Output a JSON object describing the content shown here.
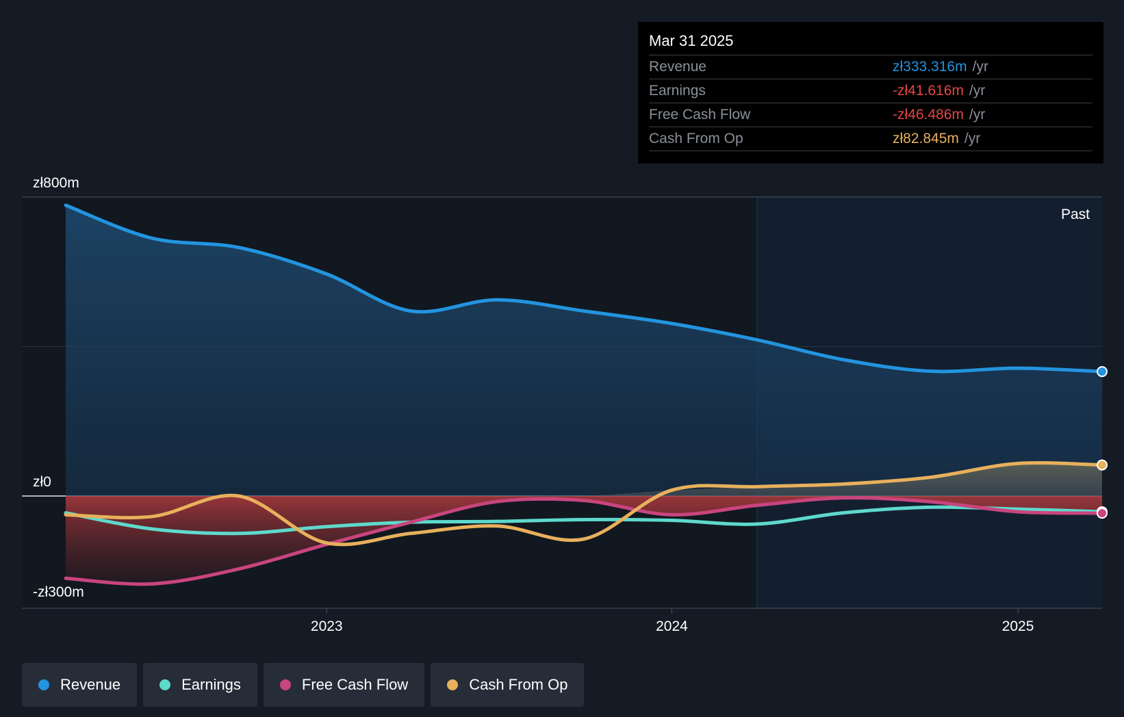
{
  "tooltip": {
    "date": "Mar 31 2025",
    "rows": [
      {
        "label": "Revenue",
        "value": "zł333.316m",
        "unit": "/yr",
        "color": "#2394df"
      },
      {
        "label": "Earnings",
        "value": "-zł41.616m",
        "unit": "/yr",
        "color": "#e64545"
      },
      {
        "label": "Free Cash Flow",
        "value": "-zł46.486m",
        "unit": "/yr",
        "color": "#e64545"
      },
      {
        "label": "Cash From Op",
        "value": "zł82.845m",
        "unit": "/yr",
        "color": "#e8b05c"
      }
    ]
  },
  "legend": [
    {
      "label": "Revenue",
      "color": "#2394df"
    },
    {
      "label": "Earnings",
      "color": "#5ed9cc"
    },
    {
      "label": "Free Cash Flow",
      "color": "#c8457e"
    },
    {
      "label": "Cash From Op",
      "color": "#e8b05c"
    }
  ],
  "chart_data": {
    "type": "line",
    "y_unit": "zł millions",
    "ylim": [
      -300,
      800
    ],
    "y_ticks": [
      {
        "value": 800,
        "label": "zł800m"
      },
      {
        "value": 0,
        "label": "zł0"
      },
      {
        "value": -300,
        "label": "-zł300m"
      }
    ],
    "x_range": [
      "2022-03-31",
      "2025-03-31"
    ],
    "x_ticks": [
      {
        "date": "2023-01-01",
        "label": "2023"
      },
      {
        "date": "2024-01-01",
        "label": "2024"
      },
      {
        "date": "2025-01-01",
        "label": "2025"
      }
    ],
    "past_label": "Past",
    "past_start": "2024-03-31",
    "x": [
      "2022-03-31",
      "2022-06-30",
      "2022-09-30",
      "2022-12-31",
      "2023-03-31",
      "2023-06-30",
      "2023-09-30",
      "2023-12-31",
      "2024-03-31",
      "2024-06-30",
      "2024-09-30",
      "2024-12-31",
      "2025-03-31"
    ],
    "series": [
      {
        "name": "Revenue",
        "color": "#2394df",
        "values": [
          778,
          690,
          665,
          595,
          495,
          525,
          495,
          462,
          418,
          365,
          334,
          342,
          333
        ]
      },
      {
        "name": "Earnings",
        "color": "#5ed9cc",
        "values": [
          -45,
          -88,
          -100,
          -82,
          -70,
          -68,
          -63,
          -65,
          -75,
          -45,
          -30,
          -35,
          -42
        ]
      },
      {
        "name": "Free Cash Flow",
        "color": "#c8457e",
        "values": [
          -220,
          -235,
          -195,
          -130,
          -70,
          -15,
          -12,
          -50,
          -25,
          -5,
          -15,
          -42,
          -46
        ]
      },
      {
        "name": "Cash From Op",
        "color": "#e8b05c",
        "values": [
          -50,
          -55,
          0,
          -125,
          -100,
          -80,
          -115,
          15,
          25,
          32,
          50,
          87,
          83
        ]
      }
    ]
  }
}
